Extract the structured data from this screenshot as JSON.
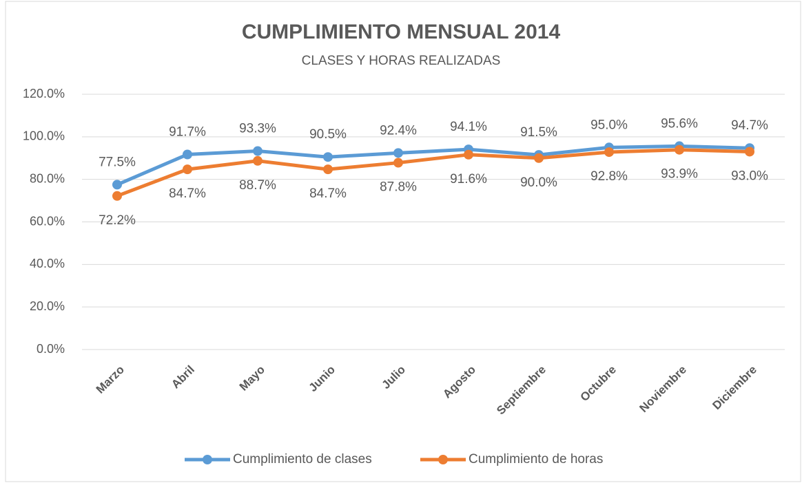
{
  "chart_data": {
    "type": "line",
    "title": "CUMPLIMIENTO MENSUAL 2014",
    "subtitle": "CLASES Y HORAS REALIZADAS",
    "categories": [
      "Marzo",
      "Abril",
      "Mayo",
      "Junio",
      "Julio",
      "Agosto",
      "Septiembre",
      "Octubre",
      "Noviembre",
      "Diciembre"
    ],
    "series": [
      {
        "name": "Cumplimiento de clases",
        "color": "#5b9bd5",
        "values": [
          77.5,
          91.7,
          93.3,
          90.5,
          92.4,
          94.1,
          91.5,
          95.0,
          95.6,
          94.7
        ],
        "value_labels": [
          "77.5%",
          "91.7%",
          "93.3%",
          "90.5%",
          "92.4%",
          "94.1%",
          "91.5%",
          "95.0%",
          "95.6%",
          "94.7%"
        ]
      },
      {
        "name": "Cumplimiento de horas",
        "color": "#ed7d31",
        "values": [
          72.2,
          84.7,
          88.7,
          84.7,
          87.8,
          91.6,
          90.0,
          92.8,
          93.9,
          93.0
        ],
        "value_labels": [
          "72.2%",
          "84.7%",
          "88.7%",
          "84.7%",
          "87.8%",
          "91.6%",
          "90.0%",
          "92.8%",
          "93.9%",
          "93.0%"
        ]
      }
    ],
    "ylim": [
      0,
      120
    ],
    "yticks": [
      {
        "value": 0,
        "label": "0.0%"
      },
      {
        "value": 20,
        "label": "20.0%"
      },
      {
        "value": 40,
        "label": "40.0%"
      },
      {
        "value": 60,
        "label": "60.0%"
      },
      {
        "value": 80,
        "label": "80.0%"
      },
      {
        "value": 100,
        "label": "100.0%"
      },
      {
        "value": 120,
        "label": "120.0%"
      }
    ],
    "grid": true,
    "legend": "bottom"
  }
}
